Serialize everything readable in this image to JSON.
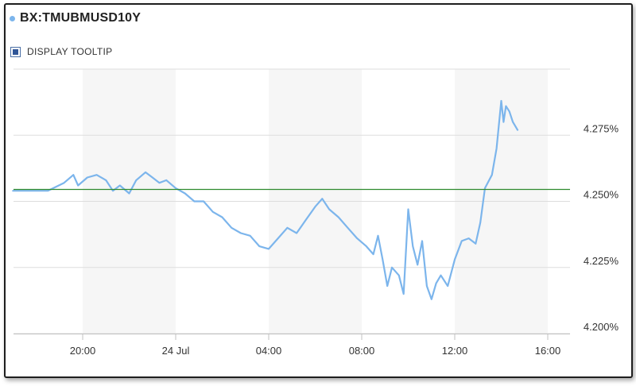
{
  "header": {
    "symbol": "BX:TMUBMUSD10Y",
    "tooltip_label": "DISPLAY TOOLTIP"
  },
  "colors": {
    "line": "#7cb5ec",
    "reference": "#2e8b2e",
    "band": "#f6f6f6",
    "grid": "#dddddd"
  },
  "chart_data": {
    "type": "line",
    "x_ticks": [
      "20:00",
      "24 Jul",
      "04:00",
      "08:00",
      "12:00",
      "16:00"
    ],
    "y_ticks": [
      "4.200%",
      "4.225%",
      "4.250%",
      "4.275%"
    ],
    "y_tick_values": [
      4.2,
      4.225,
      4.25,
      4.275
    ],
    "ylim": [
      4.2,
      4.3
    ],
    "xlim_hours": [
      17,
      16.4
    ],
    "reference_line": 4.2545,
    "grid": true,
    "series": [
      {
        "x_hours": [
          17.0,
          18.5,
          19.2,
          19.6,
          19.8,
          20.2,
          20.6,
          21.0,
          21.3,
          21.6,
          22.0,
          22.3,
          22.7,
          23.0,
          23.3,
          23.6,
          0.0,
          0.4,
          0.8,
          1.2,
          1.6,
          2.0,
          2.4,
          2.8,
          3.2,
          3.6,
          4.0,
          4.4,
          4.8,
          5.2,
          5.6,
          6.0,
          6.3,
          6.6,
          7.0,
          7.4,
          7.8,
          8.2,
          8.5,
          8.7,
          8.9,
          9.1,
          9.3,
          9.6,
          9.8,
          10.0,
          10.2,
          10.4,
          10.6,
          10.8,
          11.0,
          11.2,
          11.4,
          11.7,
          12.0,
          12.3,
          12.6,
          12.9,
          13.1,
          13.3,
          13.6,
          13.8,
          14.0,
          14.1,
          14.2,
          14.35,
          14.5,
          14.7
        ],
        "y": [
          4.254,
          4.254,
          4.257,
          4.26,
          4.256,
          4.259,
          4.26,
          4.258,
          4.254,
          4.256,
          4.253,
          4.258,
          4.261,
          4.259,
          4.257,
          4.258,
          4.255,
          4.253,
          4.25,
          4.25,
          4.246,
          4.244,
          4.24,
          4.238,
          4.237,
          4.233,
          4.232,
          4.236,
          4.24,
          4.238,
          4.243,
          4.248,
          4.251,
          4.247,
          4.244,
          4.24,
          4.236,
          4.233,
          4.23,
          4.237,
          4.228,
          4.218,
          4.225,
          4.222,
          4.215,
          4.247,
          4.233,
          4.226,
          4.235,
          4.218,
          4.213,
          4.219,
          4.222,
          4.218,
          4.228,
          4.235,
          4.236,
          4.234,
          4.242,
          4.255,
          4.26,
          4.27,
          4.288,
          4.28,
          4.286,
          4.284,
          4.28,
          4.277
        ]
      }
    ]
  }
}
